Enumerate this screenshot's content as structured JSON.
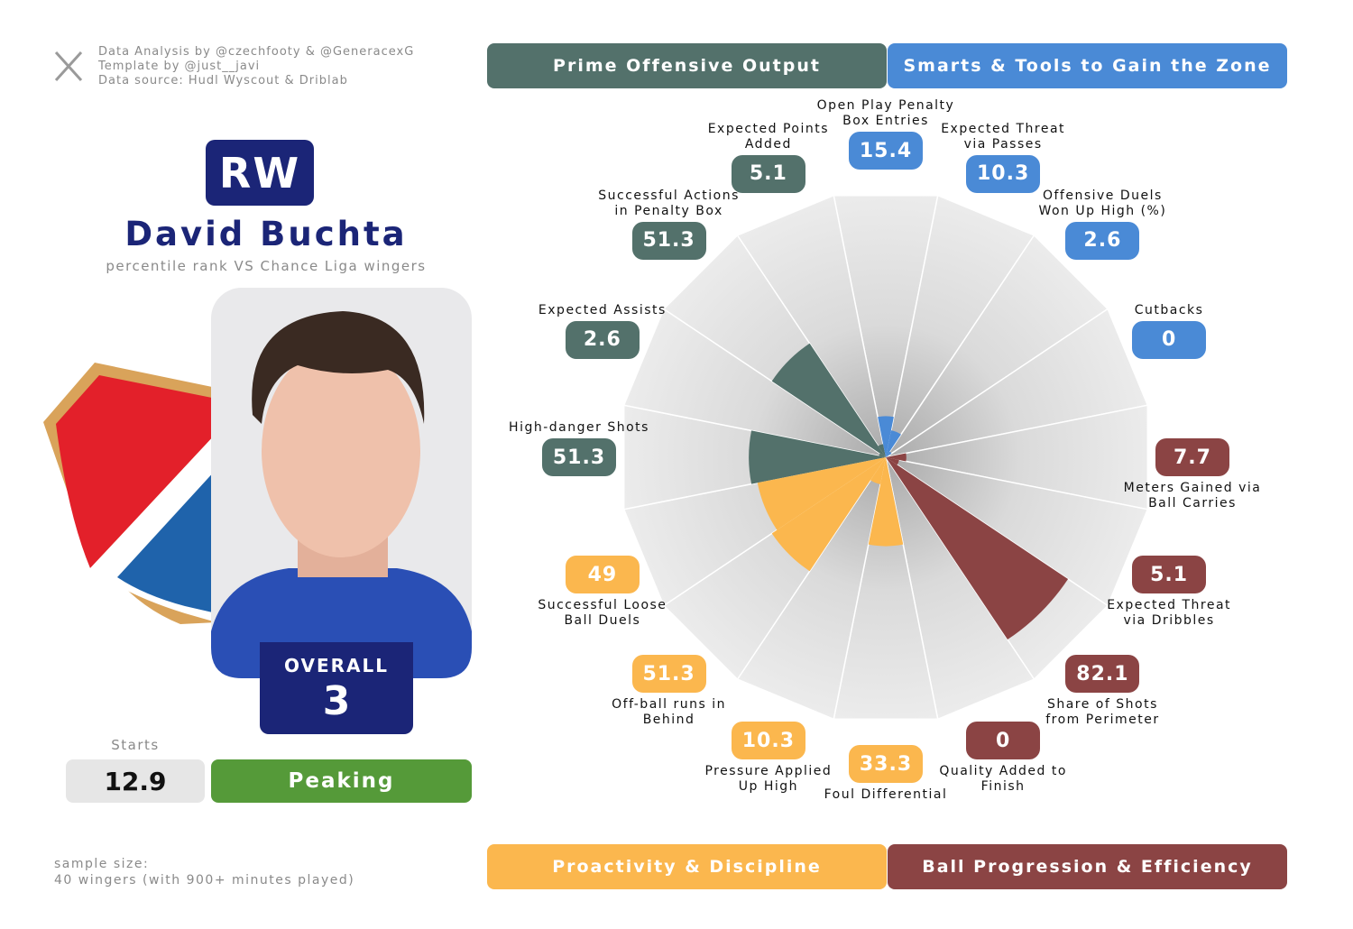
{
  "credits": [
    "Data Analysis by @czechfooty & @GeneracexG",
    "Template by @just__javi",
    "Data source: Hudl Wyscout & Driblab"
  ],
  "player": {
    "position": "RW",
    "name": "David Buchta",
    "subtitle": "percentile rank VS Chance Liga wingers",
    "overall_label": "OVERALL",
    "overall": 3,
    "starts_label": "Starts",
    "starts": 12.9,
    "status": "Peaking"
  },
  "sample_size": [
    "sample size:",
    "40 wingers (with 900+ minutes played)"
  ],
  "chart_data": {
    "type": "pizza",
    "categories": [
      "Open Play Penalty Box Entries",
      "Expected Threat via Passes",
      "Offensive Duels Won Up High (%)",
      "Cutbacks",
      "Meters Gained via Ball Carries",
      "Expected Threat via Dribbles",
      "Share of Shots from Perimeter",
      "Quality Added to Finish",
      "Foul Differential",
      "Pressure Applied Up High",
      "Off-ball runs in Behind",
      "Successful Loose Ball Duels",
      "High-danger Shots",
      "Expected Assists",
      "Successful Actions in Penalty Box",
      "Expected Points Added"
    ],
    "series": [
      {
        "name": "Prime Offensive Output",
        "color": "#53716b",
        "values": [
          null,
          null,
          null,
          null,
          null,
          null,
          null,
          null,
          null,
          null,
          null,
          null,
          51.3,
          2.6,
          51.3,
          5.1
        ]
      },
      {
        "name": "Smarts & Tools to Gain the Zone",
        "color": "#4a8ad6",
        "values": [
          15.4,
          10.3,
          2.6,
          0,
          null,
          null,
          null,
          null,
          null,
          null,
          null,
          null,
          null,
          null,
          null,
          null
        ]
      },
      {
        "name": "Proactivity & Discipline",
        "color": "#fbb74e",
        "values": [
          null,
          null,
          null,
          null,
          null,
          null,
          null,
          null,
          33.3,
          10.3,
          51.3,
          49,
          null,
          null,
          null,
          null
        ]
      },
      {
        "name": "Ball Progression & Efficiency",
        "color": "#8b4444",
        "values": [
          null,
          null,
          null,
          null,
          7.7,
          5.1,
          82.1,
          0,
          null,
          null,
          null,
          null,
          null,
          null,
          null,
          null
        ]
      }
    ],
    "ylim": [
      0,
      100
    ]
  }
}
